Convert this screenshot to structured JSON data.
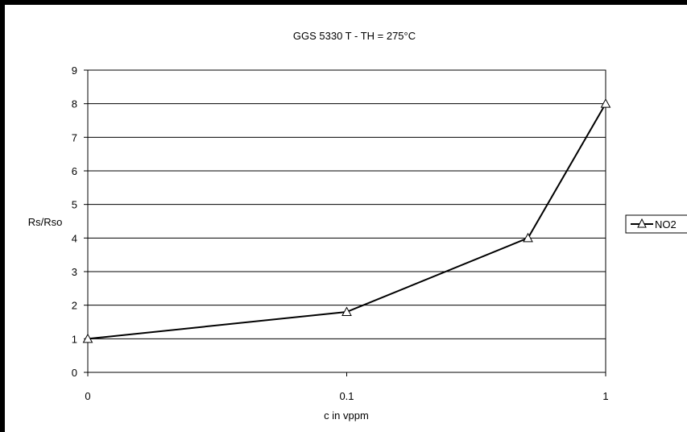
{
  "chart_data": {
    "type": "line",
    "title": "GGS 5330 T - TH = 275°C",
    "xlabel": "c in vppm",
    "ylabel": "Rs/Rso",
    "x_tick_labels": [
      "0",
      "0.1",
      "1"
    ],
    "x_positions": [
      0,
      1,
      1.7,
      2
    ],
    "ylim": [
      0,
      9
    ],
    "y_ticks": [
      0,
      1,
      2,
      3,
      4,
      5,
      6,
      7,
      8,
      9
    ],
    "grid": "horizontal",
    "legend_position": "right",
    "series": [
      {
        "name": "NO2",
        "marker": "triangle",
        "color": "#000000",
        "values": [
          1,
          1.8,
          4,
          8
        ]
      }
    ]
  }
}
